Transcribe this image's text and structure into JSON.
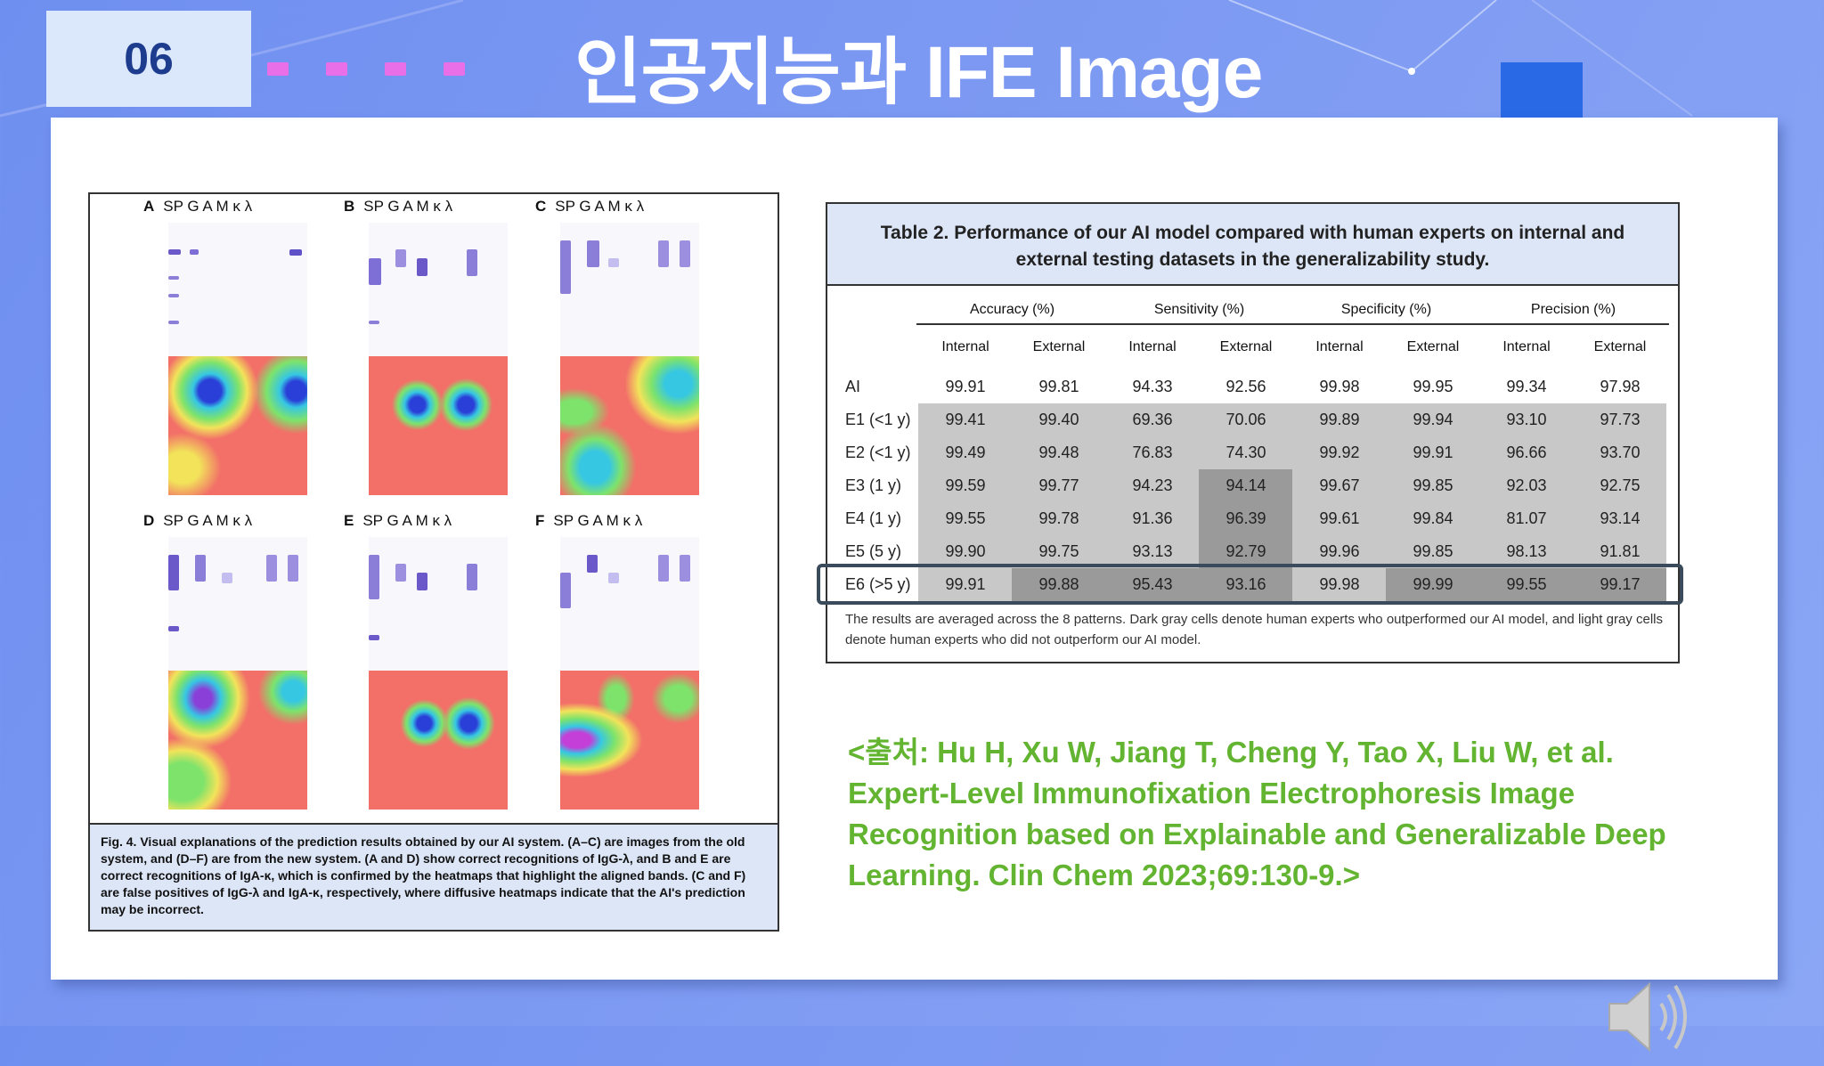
{
  "slide": {
    "number": "06",
    "title": "인공지능과  IFE Image"
  },
  "figure": {
    "panels": [
      {
        "letter": "A",
        "lanes": "SP G  A  M  κ  λ"
      },
      {
        "letter": "B",
        "lanes": "SP G  A  M  κ  λ"
      },
      {
        "letter": "C",
        "lanes": "SP G  A  M  κ  λ"
      },
      {
        "letter": "D",
        "lanes": "SP  G  A  M  κ  λ"
      },
      {
        "letter": "E",
        "lanes": "SP  G  A  M  κ  λ"
      },
      {
        "letter": "F",
        "lanes": "SP  G  A  M  κ  λ"
      }
    ],
    "caption": "Fig. 4.  Visual explanations of the prediction results obtained by our AI system. (A–C) are images from the old system, and (D–F) are from the new system. (A and D) show correct recognitions of IgG-λ, and B and E are correct recognitions of IgA-κ, which is confirmed by the heatmaps that highlight the aligned bands. (C and F) are false positives of IgG-λ and IgA-κ, respectively, where diffusive heatmaps indicate that the AI's prediction may be incorrect."
  },
  "table": {
    "title": "Table 2.  Performance of our AI model compared with human experts on internal and external testing datasets in the generalizability study.",
    "groups": [
      "Accuracy (%)",
      "Sensitivity (%)",
      "Specificity (%)",
      "Precision (%)"
    ],
    "subheaders": [
      "Internal",
      "External",
      "Internal",
      "External",
      "Internal",
      "External",
      "Internal",
      "External"
    ],
    "rows": [
      {
        "label": "AI",
        "values": [
          "99.91",
          "99.81",
          "94.33",
          "92.56",
          "99.98",
          "99.95",
          "99.34",
          "97.98"
        ]
      },
      {
        "label": "E1 (<1 y)",
        "values": [
          "99.41",
          "99.40",
          "69.36",
          "70.06",
          "99.89",
          "99.94",
          "93.10",
          "97.73"
        ]
      },
      {
        "label": "E2 (<1 y)",
        "values": [
          "99.49",
          "99.48",
          "76.83",
          "74.30",
          "99.92",
          "99.91",
          "96.66",
          "93.70"
        ]
      },
      {
        "label": "E3 (1 y)",
        "values": [
          "99.59",
          "99.77",
          "94.23",
          "94.14",
          "99.67",
          "99.85",
          "92.03",
          "92.75"
        ]
      },
      {
        "label": "E4 (1 y)",
        "values": [
          "99.55",
          "99.78",
          "91.36",
          "96.39",
          "99.61",
          "99.84",
          "81.07",
          "93.14"
        ]
      },
      {
        "label": "E5 (5 y)",
        "values": [
          "99.90",
          "99.75",
          "93.13",
          "92.79",
          "99.96",
          "99.85",
          "98.13",
          "91.81"
        ]
      },
      {
        "label": "E6 (>5 y)",
        "values": [
          "99.91",
          "99.88",
          "95.43",
          "93.16",
          "99.98",
          "99.99",
          "99.55",
          "99.17"
        ]
      }
    ],
    "footnote": "The results are averaged across the 8 patterns. Dark gray cells denote human experts who outperformed our AI model, and light gray cells denote human experts who did not outperform our AI model."
  },
  "citation": "<출처: Hu H, Xu W, Jiang T, Cheng Y, Tao X, Liu W, et al. Expert-Level Immunofixation Electrophoresis Image Recognition based on Explainable and Generalizable Deep Learning. Clin Chem 2023;69:130-9.>",
  "icons": [
    "speaker-icon"
  ],
  "colors": {
    "background": "#7b98f2",
    "title_text": "#ffffff",
    "citation": "#62b431",
    "dots": "#e86fe8",
    "accent_square": "#2a69e6"
  }
}
